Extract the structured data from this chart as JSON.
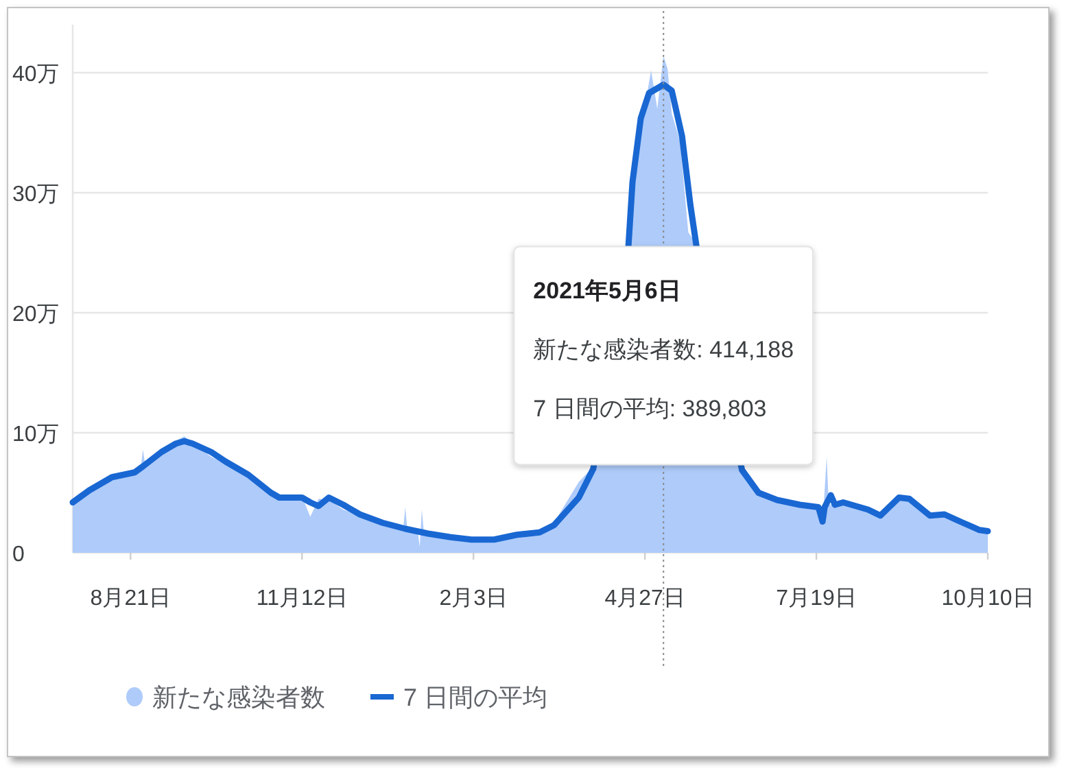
{
  "chart_data": {
    "type": "area",
    "xlim": [
      "2020-07-24",
      "2021-10-10"
    ],
    "xticks": [
      {
        "value": "2020-08-21",
        "label": "8月21日"
      },
      {
        "value": "2020-11-12",
        "label": "11月12日"
      },
      {
        "value": "2021-02-03",
        "label": "2月3日"
      },
      {
        "value": "2021-04-27",
        "label": "4月27日"
      },
      {
        "value": "2021-07-19",
        "label": "7月19日"
      },
      {
        "value": "2021-10-10",
        "label": "10月10日"
      }
    ],
    "ylim": [
      0,
      44
    ],
    "yticks": [
      0,
      {
        "value": 10,
        "label": "10万"
      },
      {
        "value": 20,
        "label": "20万"
      },
      {
        "value": 30,
        "label": "30万"
      },
      {
        "value": 40,
        "label": "40万"
      }
    ],
    "grid": "y",
    "legend": "bottom left",
    "series": [
      {
        "name": "新たな感染者数",
        "type": "area",
        "color": "#aecbfa",
        "x": [
          "2020-07-24",
          "2020-08-01",
          "2020-08-12",
          "2020-08-23",
          "2020-08-26",
          "2020-08-27",
          "2020-08-28",
          "2020-09-05",
          "2020-09-16",
          "2020-09-20",
          "2020-09-29",
          "2020-10-06",
          "2020-10-17",
          "2020-10-28",
          "2020-11-01",
          "2020-11-12",
          "2020-11-16",
          "2020-11-20",
          "2020-11-25",
          "2020-12-02",
          "2020-12-10",
          "2020-12-21",
          "2020-12-31",
          "2021-01-01",
          "2021-01-02",
          "2021-01-07",
          "2021-01-08",
          "2021-01-09",
          "2021-01-10",
          "2021-01-23",
          "2021-02-03",
          "2021-02-13",
          "2021-02-24",
          "2021-03-07",
          "2021-03-14",
          "2021-03-26",
          "2021-04-01",
          "2021-04-19",
          "2021-04-23",
          "2021-04-25",
          "2021-04-30",
          "2021-05-03",
          "2021-05-06",
          "2021-05-08",
          "2021-05-10",
          "2021-05-14",
          "2021-05-18",
          "2021-05-22",
          "2021-06-14",
          "2021-06-21",
          "2021-06-30",
          "2021-07-11",
          "2021-07-20",
          "2021-07-22",
          "2021-07-24",
          "2021-07-25",
          "2021-08-01",
          "2021-08-13",
          "2021-08-19",
          "2021-08-28",
          "2021-09-02",
          "2021-09-12",
          "2021-09-19",
          "2021-09-28",
          "2021-10-06",
          "2021-10-10"
        ],
        "values": [
          4.5,
          5.5,
          6.4,
          6.9,
          7.2,
          8.6,
          7.4,
          8.7,
          9.7,
          9.2,
          8.0,
          7.4,
          6.2,
          4.9,
          4.6,
          4.7,
          3.0,
          4.5,
          4.4,
          3.6,
          3.1,
          2.4,
          2.0,
          3.8,
          1.9,
          1.8,
          0.5,
          3.6,
          1.7,
          1.4,
          1.1,
          1.2,
          1.6,
          1.8,
          2.5,
          5.9,
          7.0,
          26.2,
          34.5,
          35.2,
          40.2,
          37.0,
          41.4,
          40.3,
          36.6,
          34.3,
          26.7,
          25.7,
          6.8,
          5.3,
          4.6,
          4.1,
          3.8,
          2.4,
          8.0,
          4.0,
          4.2,
          3.8,
          3.2,
          4.7,
          4.6,
          3.1,
          3.3,
          2.5,
          2.0,
          1.8
        ]
      },
      {
        "name": "7 日間の平均",
        "type": "line",
        "color": "#1967d2",
        "x": [
          "2020-07-24",
          "2020-08-01",
          "2020-08-12",
          "2020-08-23",
          "2020-08-27",
          "2020-09-05",
          "2020-09-12",
          "2020-09-16",
          "2020-09-20",
          "2020-09-29",
          "2020-10-06",
          "2020-10-17",
          "2020-10-28",
          "2020-11-01",
          "2020-11-12",
          "2020-11-16",
          "2020-11-20",
          "2020-11-25",
          "2020-12-02",
          "2020-12-10",
          "2020-12-21",
          "2021-01-01",
          "2021-01-12",
          "2021-01-23",
          "2021-02-02",
          "2021-02-13",
          "2021-02-24",
          "2021-03-07",
          "2021-03-14",
          "2021-03-26",
          "2021-04-02",
          "2021-04-19",
          "2021-04-21",
          "2021-04-25",
          "2021-04-29",
          "2021-05-06",
          "2021-05-10",
          "2021-05-15",
          "2021-05-19",
          "2021-05-22",
          "2021-06-13",
          "2021-06-21",
          "2021-06-30",
          "2021-07-11",
          "2021-07-20",
          "2021-07-22",
          "2021-07-23",
          "2021-07-26",
          "2021-07-28",
          "2021-08-01",
          "2021-08-13",
          "2021-08-19",
          "2021-08-28",
          "2021-09-02",
          "2021-09-12",
          "2021-09-19",
          "2021-09-28",
          "2021-10-06",
          "2021-10-10"
        ],
        "values": [
          4.2,
          5.2,
          6.3,
          6.7,
          7.2,
          8.4,
          9.1,
          9.3,
          9.1,
          8.4,
          7.6,
          6.5,
          5.0,
          4.6,
          4.6,
          4.2,
          3.9,
          4.6,
          4.0,
          3.2,
          2.5,
          2.0,
          1.6,
          1.3,
          1.1,
          1.1,
          1.5,
          1.7,
          2.3,
          4.6,
          7.0,
          25.5,
          30.9,
          36.2,
          38.3,
          39.0,
          38.5,
          34.7,
          29.0,
          25.5,
          6.9,
          5.0,
          4.4,
          4.0,
          3.8,
          2.6,
          3.8,
          4.8,
          4.0,
          4.2,
          3.6,
          3.1,
          4.6,
          4.5,
          3.1,
          3.2,
          2.5,
          1.9,
          1.8
        ]
      }
    ],
    "ref_lines": [
      {
        "axis": "x",
        "value": "2021-05-06",
        "line_style": "dotted",
        "color": "#8a8a8a"
      }
    ],
    "annotations": [
      "2021年5月6日",
      "新たな感染者数: 414,188",
      "7 日間の平均: 389,803"
    ]
  }
}
